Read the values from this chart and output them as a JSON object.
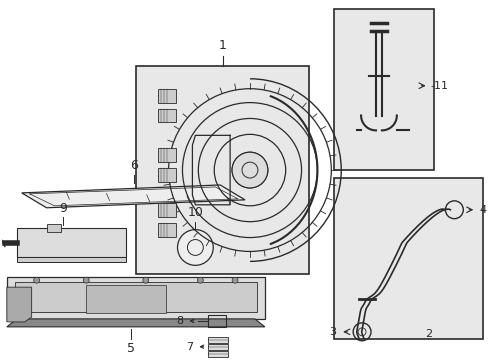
{
  "background_color": "#ffffff",
  "fig_width": 4.89,
  "fig_height": 3.6,
  "dpi": 100,
  "line_color": "#2a2a2a",
  "box_fill": "#e8e8e8",
  "box_edge": "#2a2a2a",
  "part_fill": "#cccccc",
  "part_fill2": "#aaaaaa"
}
